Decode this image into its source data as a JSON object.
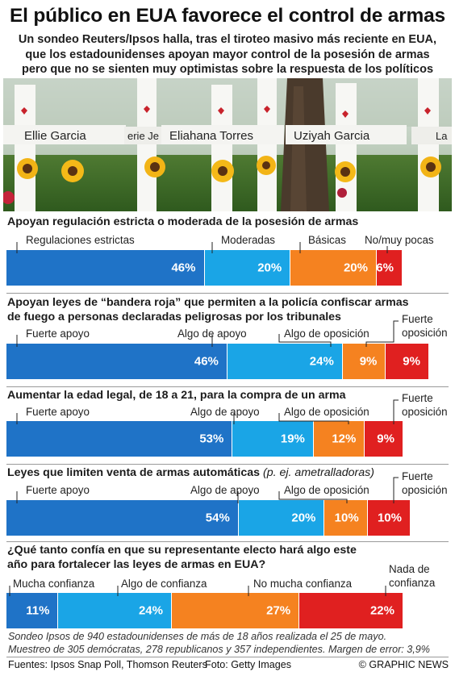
{
  "header": {
    "title": "El público en EUA favorece el control de armas",
    "subtitle_lines": [
      "Un sondeo Reuters/Ipsos halla, tras el tiroteo masivo más reciente en EUA,",
      "que los estadounidenses apoyan mayor control de la posesión de armas",
      "pero que no se sienten muy optimistas sobre la respuesta de los políticos"
    ]
  },
  "photo": {
    "name_labels": [
      "Ellie Garcia",
      "erie Je",
      "Eliahana Torres",
      "Uziyah Garcia",
      "La"
    ]
  },
  "colors": {
    "c1": "#1f73c7",
    "c2": "#1aa5e6",
    "c3": "#f58220",
    "c4": "#e02020"
  },
  "chart_data": [
    {
      "type": "bar",
      "title": "Apoyan regulación estricta o moderada de la posesión de armas",
      "categories": [
        "Regulaciones estrictas",
        "Moderadas",
        "Básicas",
        "No/muy pocas"
      ],
      "values": [
        46,
        20,
        20,
        6
      ],
      "value_labels": [
        "46%",
        "20%",
        "20%",
        "6%"
      ]
    },
    {
      "type": "bar",
      "title_lines": [
        "Apoyan leyes de “bandera roja” que permiten a la policía confiscar armas",
        "de fuego a personas declaradas peligrosas por los tribunales"
      ],
      "categories": [
        "Fuerte apoyo",
        "Algo de apoyo",
        "Algo de oposición",
        "Fuerte oposición"
      ],
      "values": [
        46,
        24,
        9,
        9
      ],
      "value_labels": [
        "46%",
        "24%",
        "9%",
        "9%"
      ]
    },
    {
      "type": "bar",
      "title": "Aumentar la edad legal, de 18 a 21, para la compra de un arma",
      "categories": [
        "Fuerte apoyo",
        "Algo de apoyo",
        "Algo de oposición",
        "Fuerte oposición"
      ],
      "values": [
        53,
        19,
        12,
        9
      ],
      "value_labels": [
        "53%",
        "19%",
        "12%",
        "9%"
      ]
    },
    {
      "type": "bar",
      "title": "Leyes que limiten venta de armas automáticas",
      "title_note": "(p. ej. ametralladoras)",
      "categories": [
        "Fuerte apoyo",
        "Algo de apoyo",
        "Algo de oposición",
        "Fuerte oposición"
      ],
      "values": [
        54,
        20,
        10,
        10
      ],
      "value_labels": [
        "54%",
        "20%",
        "10%",
        "10%"
      ]
    },
    {
      "type": "bar",
      "title_lines": [
        "¿Qué tanto confía en que su representante electo hará algo este",
        "año para fortalecer las leyes de armas en EUA?"
      ],
      "categories": [
        "Mucha confianza",
        "Algo de confianza",
        "No mucha confianza",
        "Nada de confianza"
      ],
      "values": [
        11,
        24,
        27,
        22
      ],
      "value_labels": [
        "11%",
        "24%",
        "27%",
        "22%"
      ]
    }
  ],
  "footnote_lines": [
    "Sondeo Ipsos de 940 estadounidenses de más de 18 años realizada el 25 de mayo.",
    "Muestreo de 305 demócratas, 278 republicanos y 357 independientes. Margen de error: 3,9%"
  ],
  "footer": {
    "sources": "Fuentes: Ipsos Snap Poll, Thomson Reuters",
    "photo_credit": "Foto: Getty Images",
    "brand": "© GRAPHIC NEWS"
  }
}
